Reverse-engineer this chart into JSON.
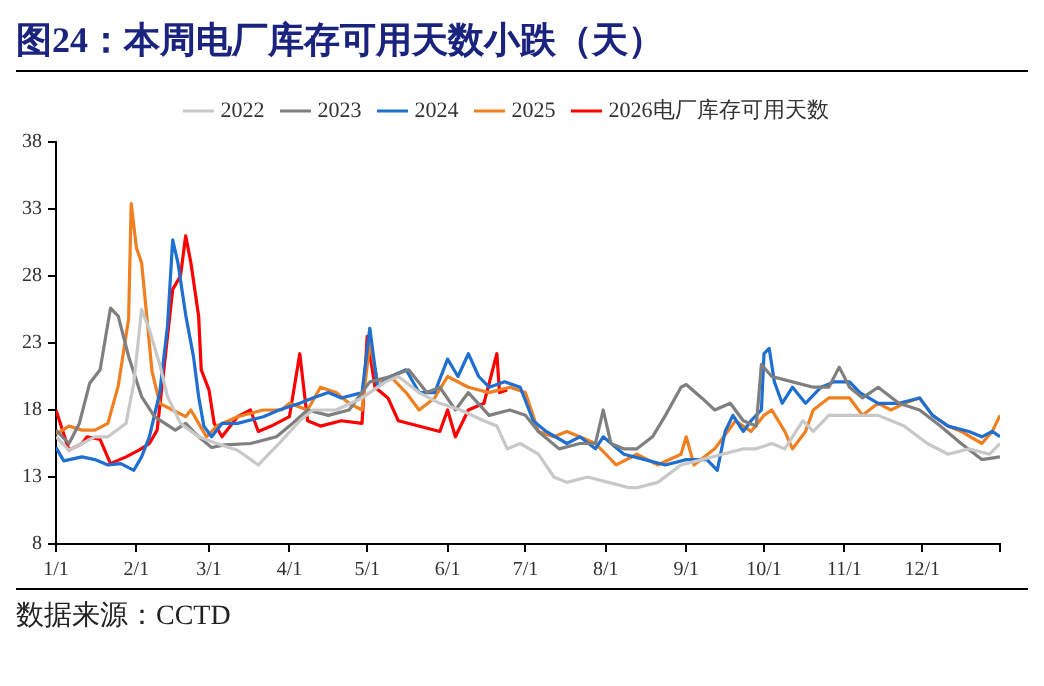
{
  "chart_data": {
    "type": "line",
    "title": "图24：本周电厂库存可用天数小跌（天）",
    "annotations": [
      "数据来源：CCTD"
    ],
    "xlim": [
      "--01-01",
      "--12-31"
    ],
    "xticks": [
      {
        "value": "--01-01",
        "label": "1/1"
      },
      {
        "value": "--02-01",
        "label": "2/1"
      },
      {
        "value": "--03-01",
        "label": "3/1"
      },
      {
        "value": "--04-01",
        "label": "4/1"
      },
      {
        "value": "--05-01",
        "label": "5/1"
      },
      {
        "value": "--06-01",
        "label": "6/1"
      },
      {
        "value": "--07-01",
        "label": "7/1"
      },
      {
        "value": "--08-01",
        "label": "8/1"
      },
      {
        "value": "--09-01",
        "label": "9/1"
      },
      {
        "value": "--10-01",
        "label": "10/1"
      },
      {
        "value": "--11-01",
        "label": "11/1"
      },
      {
        "value": "--12-01",
        "label": "12/1"
      },
      {
        "value": "--12-31",
        "label": null
      }
    ],
    "ylim": [
      8,
      38
    ],
    "yticks": [
      8,
      13,
      18,
      23,
      28,
      33,
      38
    ],
    "grid": false,
    "legend": "top",
    "marker": "none",
    "line_style": "solid",
    "series": [
      {
        "name": "2022",
        "color": "#c8c8c8",
        "x": [
          "--01-01",
          "--01-06",
          "--01-11",
          "--01-16",
          "--01-21",
          "--01-28",
          "--01-31",
          "--02-03",
          "--02-06",
          "--02-10",
          "--02-13",
          "--02-18",
          "--02-25",
          "--03-04",
          "--03-12",
          "--03-20",
          "--03-28",
          "--04-05",
          "--04-10",
          "--04-19",
          "--04-29",
          "--05-08",
          "--05-13",
          "--05-21",
          "--05-29",
          "--06-06",
          "--06-15",
          "--06-20",
          "--06-24",
          "--06-29",
          "--07-06",
          "--07-12",
          "--07-17",
          "--07-25",
          "--08-02",
          "--08-10",
          "--08-13",
          "--08-21",
          "--08-30",
          "--09-07",
          "--09-15",
          "--09-23",
          "--09-28",
          "--10-04",
          "--10-09",
          "--10-16",
          "--10-20",
          "--10-26",
          "--11-03",
          "--11-14",
          "--11-24",
          "--12-03",
          "--12-11",
          "--12-19",
          "--12-27",
          "--12-31"
        ],
        "values": [
          16,
          15,
          15.5,
          16,
          16,
          17,
          20,
          25.5,
          24,
          21.4,
          19,
          17,
          16,
          15.5,
          15,
          13.9,
          15.5,
          17.2,
          18,
          18,
          18.9,
          20.1,
          20.5,
          19.3,
          18.5,
          18,
          17.2,
          16.8,
          15.1,
          15.5,
          14.7,
          13,
          12.6,
          13,
          12.6,
          12.2,
          12.2,
          12.6,
          13.9,
          14.3,
          14.7,
          15.1,
          15.1,
          15.5,
          15.1,
          17.2,
          16.4,
          17.6,
          17.6,
          17.6,
          16.8,
          15.5,
          14.7,
          15.1,
          14.7,
          15.5
        ]
      },
      {
        "name": "2023",
        "color": "#7f7f7f",
        "x": [
          "--01-01",
          "--01-06",
          "--01-10",
          "--01-14",
          "--01-18",
          "--01-22",
          "--01-25",
          "--01-29",
          "--02-03",
          "--02-08",
          "--02-12",
          "--02-16",
          "--02-20",
          "--02-25",
          "--03-02",
          "--03-07",
          "--03-17",
          "--03-27",
          "--04-01",
          "--04-08",
          "--04-16",
          "--04-24",
          "--05-02",
          "--05-10",
          "--05-17",
          "--05-24",
          "--05-29",
          "--06-04",
          "--06-09",
          "--06-17",
          "--06-25",
          "--07-01",
          "--07-06",
          "--07-14",
          "--07-22",
          "--07-28",
          "--07-31",
          "--08-03",
          "--08-08",
          "--08-13",
          "--08-19",
          "--08-24",
          "--08-30",
          "--09-01",
          "--09-07",
          "--09-12",
          "--09-18",
          "--09-23",
          "--09-28",
          "--09-30",
          "--10-04",
          "--10-12",
          "--10-20",
          "--10-26",
          "--10-30",
          "--11-03",
          "--11-08",
          "--11-14",
          "--11-22",
          "--11-30",
          "--12-08",
          "--12-16",
          "--12-24",
          "--12-31"
        ],
        "values": [
          16.5,
          15.5,
          17,
          20,
          21,
          25.6,
          25,
          22,
          19,
          17.5,
          17,
          16.5,
          17,
          16,
          15.2,
          15.4,
          15.5,
          16,
          16.8,
          18,
          17.6,
          18,
          20.1,
          20.5,
          21,
          19.3,
          19.7,
          18,
          19.3,
          17.6,
          18,
          17.6,
          16.4,
          15.1,
          15.5,
          15.5,
          18,
          15.5,
          15.1,
          15.1,
          16,
          17.6,
          19.7,
          19.9,
          18.9,
          18,
          18.5,
          17.2,
          16.8,
          21.4,
          20.5,
          20.1,
          19.7,
          19.7,
          21.2,
          19.7,
          18.9,
          19.7,
          18.5,
          18,
          16.8,
          15.5,
          14.3,
          14.5
        ]
      },
      {
        "name": "2024",
        "color": "#1f6fd1",
        "x": [
          "--01-01",
          "--01-04",
          "--01-11",
          "--01-16",
          "--01-21",
          "--01-26",
          "--01-31",
          "--02-03",
          "--02-06",
          "--02-10",
          "--02-13",
          "--02-15",
          "--02-17",
          "--02-20",
          "--02-23",
          "--02-25",
          "--02-27",
          "--03-02",
          "--03-06",
          "--03-12",
          "--03-22",
          "--03-28",
          "--04-05",
          "--04-10",
          "--04-16",
          "--04-21",
          "--04-29",
          "--05-02",
          "--05-05",
          "--05-10",
          "--05-16",
          "--05-21",
          "--05-27",
          "--06-01",
          "--06-05",
          "--06-09",
          "--06-13",
          "--06-17",
          "--06-23",
          "--06-29",
          "--07-04",
          "--07-09",
          "--07-17",
          "--07-22",
          "--07-28",
          "--07-31",
          "--08-08",
          "--08-16",
          "--08-24",
          "--09-01",
          "--09-09",
          "--09-13",
          "--09-16",
          "--09-19",
          "--09-23",
          "--09-26",
          "--09-30",
          "--10-01",
          "--10-03",
          "--10-05",
          "--10-08",
          "--10-12",
          "--10-17",
          "--10-23",
          "--10-28",
          "--11-03",
          "--11-07",
          "--11-14",
          "--11-22",
          "--11-30",
          "--12-05",
          "--12-11",
          "--12-19",
          "--12-24",
          "--12-28",
          "--12-31"
        ],
        "values": [
          15.2,
          14.2,
          14.5,
          14.3,
          13.9,
          14,
          13.5,
          14.5,
          16,
          19.3,
          24.3,
          30.7,
          29,
          25.1,
          22,
          19,
          16.8,
          16,
          17,
          17,
          17.5,
          18,
          18.5,
          18.9,
          19.3,
          18.9,
          19.3,
          24.1,
          19.7,
          20.5,
          21,
          19.3,
          19.3,
          21.8,
          20.5,
          22.2,
          20.5,
          19.7,
          20.1,
          19.7,
          17.2,
          16.4,
          15.5,
          16,
          15.1,
          16,
          14.7,
          14.3,
          13.9,
          14.3,
          14.3,
          13.5,
          16.4,
          17.6,
          16.4,
          17.2,
          18,
          22.2,
          22.6,
          20.1,
          18.5,
          19.7,
          18.5,
          19.7,
          20.1,
          20.1,
          19.3,
          18.5,
          18.5,
          18.9,
          17.6,
          16.8,
          16.4,
          16,
          16.4,
          16
        ]
      },
      {
        "name": "2025",
        "color": "#f07f1f",
        "x": [
          "--01-01",
          "--01-06",
          "--01-11",
          "--01-16",
          "--01-21",
          "--01-25",
          "--01-29",
          "--01-30",
          "--02-01",
          "--02-03",
          "--02-05",
          "--02-07",
          "--02-10",
          "--02-15",
          "--02-20",
          "--02-22",
          "--02-25",
          "--02-28",
          "--03-04",
          "--03-12",
          "--03-22",
          "--03-29",
          "--04-01",
          "--04-08",
          "--04-13",
          "--04-19",
          "--04-24",
          "--04-29",
          "--05-02",
          "--05-05",
          "--05-10",
          "--05-16",
          "--05-21",
          "--05-27",
          "--06-01",
          "--06-09",
          "--06-17",
          "--06-25",
          "--07-01",
          "--07-06",
          "--07-12",
          "--07-17",
          "--07-22",
          "--07-28",
          "--08-05",
          "--08-13",
          "--08-21",
          "--08-30",
          "--09-01",
          "--09-04",
          "--09-12",
          "--09-20",
          "--09-26",
          "--10-01",
          "--10-04",
          "--10-09",
          "--10-12",
          "--10-17",
          "--10-20",
          "--10-26",
          "--11-03",
          "--11-08",
          "--11-14",
          "--11-19",
          "--11-24",
          "--11-30",
          "--12-05",
          "--12-11",
          "--12-16",
          "--12-24",
          "--12-28",
          "--12-31"
        ],
        "values": [
          16.2,
          16.8,
          16.5,
          16.5,
          17,
          19.8,
          24.8,
          33.4,
          30.1,
          29,
          25,
          20.9,
          18.5,
          18,
          17.5,
          18,
          17,
          16,
          16.8,
          17.5,
          18,
          18,
          18.5,
          18,
          19.7,
          19.3,
          18.5,
          18,
          23,
          20.1,
          20.5,
          19.3,
          18,
          18.9,
          20.5,
          19.7,
          19.3,
          19.7,
          19.3,
          16.4,
          16,
          16.4,
          16,
          15.5,
          13.9,
          14.7,
          13.9,
          14.7,
          16,
          13.9,
          15.1,
          17.2,
          16.4,
          17.6,
          18,
          16.4,
          15.1,
          16.4,
          18,
          18.9,
          18.9,
          17.6,
          18.5,
          18,
          18.5,
          18.9,
          17.6,
          16.8,
          16.4,
          15.5,
          16.4,
          17.6
        ]
      },
      {
        "name": "2026电厂库存可用天数",
        "color": "#ff0000",
        "x": [
          "--01-01",
          "--01-06",
          "--01-11",
          "--01-13",
          "--01-18",
          "--01-22",
          "--01-28",
          "--02-02",
          "--02-06",
          "--02-09",
          "--02-11",
          "--02-15",
          "--02-18",
          "--02-20",
          "--02-22",
          "--02-25",
          "--02-26",
          "--03-01",
          "--03-03",
          "--03-06",
          "--03-12",
          "--03-17",
          "--03-20",
          "--03-25",
          "--04-01",
          "--04-05",
          "--04-08",
          "--04-13",
          "--04-21",
          "--04-29",
          "--05-01",
          "--05-04",
          "--05-09",
          "--05-13",
          "--05-29",
          "--06-01",
          "--06-04",
          "--06-09",
          "--06-15",
          "--06-20",
          "--06-21",
          "--06-24"
        ],
        "values": [
          18,
          15,
          15.5,
          16,
          15.8,
          14,
          14.5,
          15,
          15.5,
          16.5,
          20,
          27,
          28,
          31,
          29,
          25,
          21,
          19.5,
          17,
          16,
          17.5,
          18,
          16.4,
          16.8,
          17.5,
          22.2,
          17.2,
          16.8,
          17.2,
          17,
          23.5,
          19.7,
          18.9,
          17.2,
          16.4,
          18,
          16,
          18,
          18.5,
          22.2,
          19.3,
          19.5
        ]
      }
    ]
  }
}
